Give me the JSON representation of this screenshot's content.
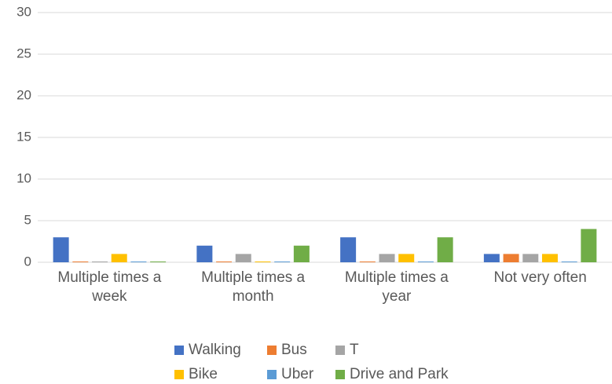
{
  "chart_data": {
    "type": "bar",
    "categories": [
      "Multiple times a week",
      "Multiple times a month",
      "Multiple times a year",
      "Not very often"
    ],
    "series": [
      {
        "name": "Walking",
        "color": "#4472c4",
        "values": [
          3,
          2,
          3,
          1
        ]
      },
      {
        "name": "Bus",
        "color": "#ed7d31",
        "values": [
          0,
          0,
          0,
          1
        ]
      },
      {
        "name": "T",
        "color": "#a5a5a5",
        "values": [
          0,
          1,
          1,
          1
        ]
      },
      {
        "name": "Bike",
        "color": "#ffc000",
        "values": [
          1,
          0,
          1,
          1
        ]
      },
      {
        "name": "Uber",
        "color": "#5b9bd5",
        "values": [
          0,
          0,
          0,
          0
        ]
      },
      {
        "name": "Drive and Park",
        "color": "#70ad47",
        "values": [
          0,
          2,
          3,
          4
        ]
      }
    ],
    "ylim": [
      0,
      30
    ],
    "yticks": [
      0,
      5,
      10,
      15,
      20,
      25,
      30
    ],
    "grid": true,
    "legend": "bottom"
  }
}
